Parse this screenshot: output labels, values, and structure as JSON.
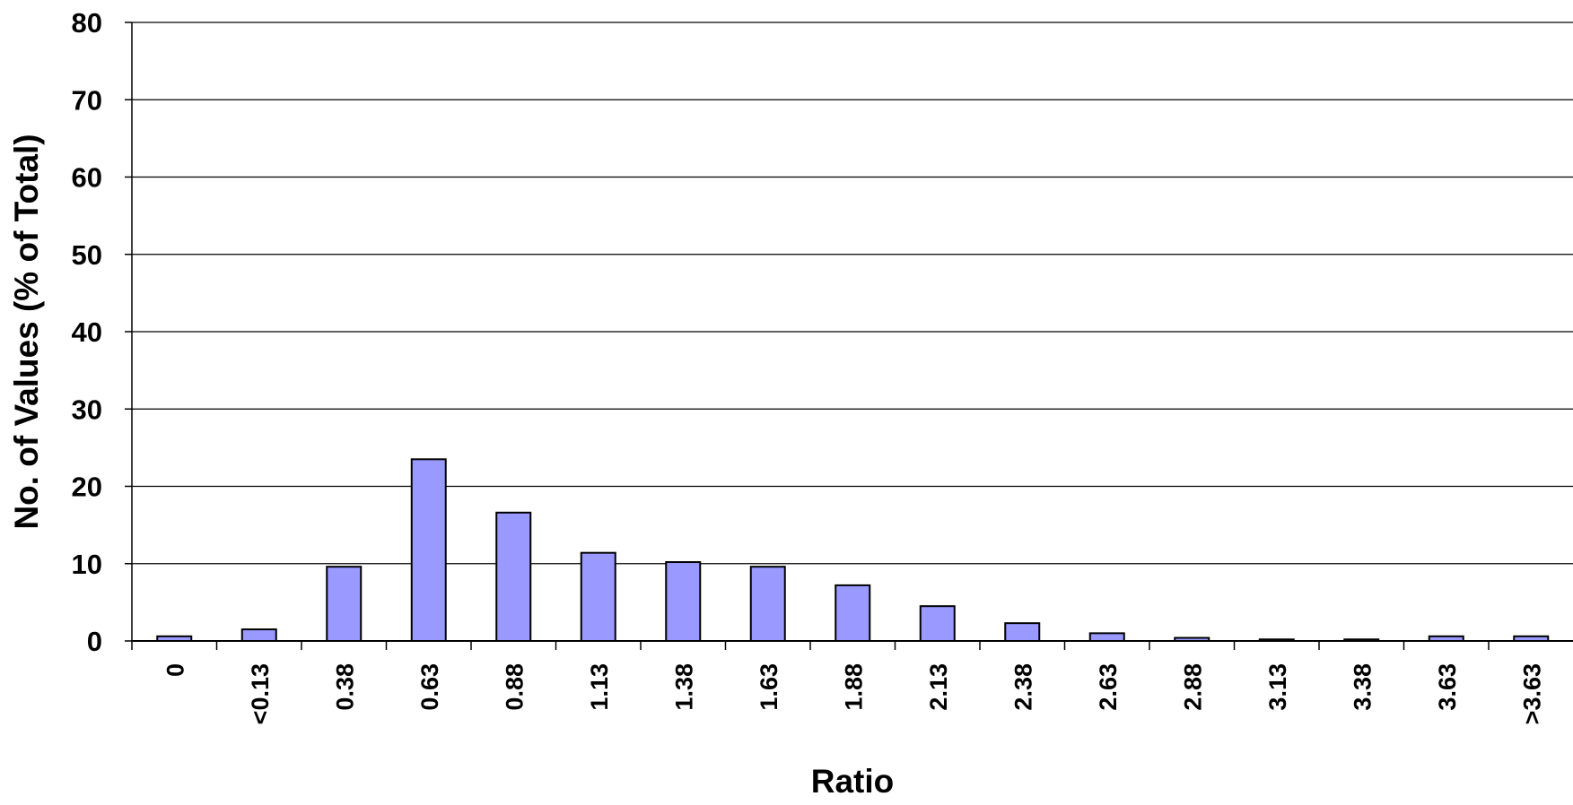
{
  "chart_data": {
    "type": "bar",
    "title": "",
    "xlabel": "Ratio",
    "ylabel": "No. of Values (% of Total)",
    "ylim": [
      0,
      80
    ],
    "yticks": [
      "0",
      "10",
      "20",
      "30",
      "40",
      "50",
      "60",
      "70",
      "80"
    ],
    "grid": true,
    "categories": [
      "0",
      "<0.13",
      "0.38",
      "0.63",
      "0.88",
      "1.13",
      "1.38",
      "1.63",
      "1.88",
      "2.13",
      "2.38",
      "2.63",
      "2.88",
      "3.13",
      "3.38",
      "3.63",
      ">3.63"
    ],
    "values": [
      0.6,
      1.5,
      9.6,
      23.5,
      16.6,
      11.4,
      10.2,
      9.6,
      7.2,
      4.5,
      2.3,
      1.0,
      0.4,
      0.2,
      0.2,
      0.6,
      0.6
    ],
    "colors": {
      "bar_fill": "#9999ff",
      "bar_stroke": "#000000",
      "grid": "#000000"
    }
  }
}
